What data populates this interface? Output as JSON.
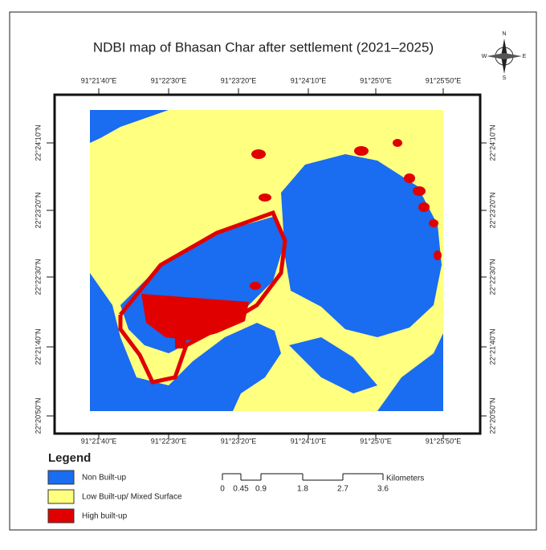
{
  "title": "NDBI map of Bhasan Char after settlement (2021–2025)",
  "grid_labels": {
    "top": [
      "91°21'40\"E",
      "91°22'30\"E",
      "91°23'20\"E",
      "91°24'10\"E",
      "91°25'0\"E",
      "91°25'50\"E"
    ],
    "bottom": [
      "91°21'40\"E",
      "91°22'30\"E",
      "91°23'20\"E",
      "91°24'10\"E",
      "91°25'0\"E",
      "91°25'50\"E"
    ],
    "left": [
      "22°24'10\"N",
      "22°23'20\"N",
      "22°22'30\"N",
      "22°21'40\"N",
      "22°20'50\"N"
    ],
    "right": [
      "22°24'10\"N",
      "22°23'20\"N",
      "22°22'30\"N",
      "22°21'40\"N",
      "22°20'50\"N"
    ]
  },
  "legend": {
    "title": "Legend",
    "items": [
      "Non Built-up",
      "Low Built-up/ Mixed Surface",
      "High built-up"
    ]
  },
  "scale_bar": {
    "labels": [
      "0",
      "0.45",
      "0.9",
      "1.8",
      "2.7",
      "3.6"
    ],
    "unit": "Kilometers"
  },
  "compass": [
    "N",
    "E",
    "S",
    "W"
  ]
}
